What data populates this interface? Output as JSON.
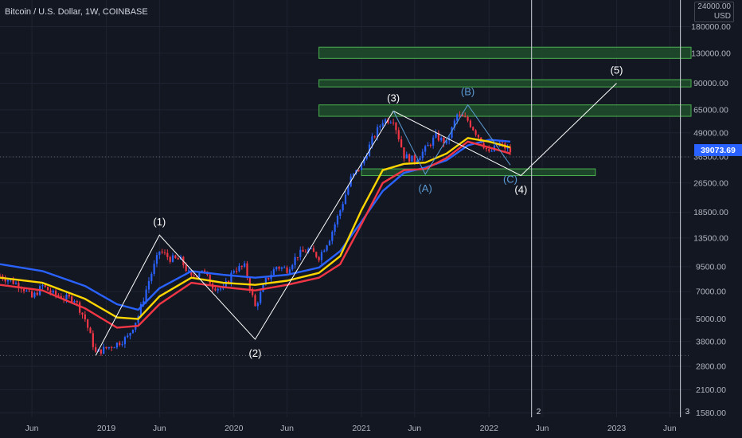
{
  "header": {
    "title": "Bitcoin / U.S. Dollar, 1W, COINBASE"
  },
  "axis": {
    "currency": "USD",
    "top_truncated": "24000.00"
  },
  "last_price": {
    "value": "39073.69",
    "color": "#2962ff"
  },
  "colors": {
    "background": "#131722",
    "up_candle": "#2962ff",
    "down_candle": "#f23645",
    "ema_blue": "#2962ff",
    "ema_yellow": "#ffd600",
    "ema_red": "#f23645",
    "zone_fill": "#1e4d2b",
    "zone_border": "#4caf50",
    "wave_line": "#ffffff",
    "abc_label": "#5b9bd5"
  },
  "chart_data": {
    "type": "candlestick",
    "title": "Bitcoin / U.S. Dollar, 1W, COINBASE",
    "y_scale": "log",
    "ylim": [
      1500,
      240000
    ],
    "xlim": [
      "2018-03",
      "2023-08"
    ],
    "y_ticks": [
      "180000.00",
      "130000.00",
      "90000.00",
      "65000.00",
      "49000.00",
      "36500.00",
      "26500.00",
      "18500.00",
      "13500.00",
      "9500.00",
      "7000.00",
      "5000.00",
      "3800.00",
      "2800.00",
      "2100.00",
      "1580.00"
    ],
    "x_ticks": [
      {
        "label": "Jun",
        "date": "2018-06"
      },
      {
        "label": "2019",
        "date": "2019-01"
      },
      {
        "label": "Jun",
        "date": "2019-06"
      },
      {
        "label": "2020",
        "date": "2020-01"
      },
      {
        "label": "Jun",
        "date": "2020-06"
      },
      {
        "label": "2021",
        "date": "2021-01"
      },
      {
        "label": "Jun",
        "date": "2021-06"
      },
      {
        "label": "2022",
        "date": "2022-01"
      },
      {
        "label": "Jun",
        "date": "2022-06"
      },
      {
        "label": "2023",
        "date": "2023-01"
      },
      {
        "label": "Jun",
        "date": "2023-06"
      }
    ],
    "price_path": [
      [
        "2018-03",
        8500
      ],
      [
        "2018-04",
        8000
      ],
      [
        "2018-05",
        7500
      ],
      [
        "2018-06",
        6500
      ],
      [
        "2018-07",
        7500
      ],
      [
        "2018-08",
        6800
      ],
      [
        "2018-09",
        6500
      ],
      [
        "2018-10",
        6400
      ],
      [
        "2018-11",
        5000
      ],
      [
        "2018-12",
        3300
      ],
      [
        "2019-01",
        3500
      ],
      [
        "2019-02",
        3700
      ],
      [
        "2019-03",
        4000
      ],
      [
        "2019-04",
        5200
      ],
      [
        "2019-05",
        8000
      ],
      [
        "2019-06",
        11500
      ],
      [
        "2019-07",
        10500
      ],
      [
        "2019-08",
        10300
      ],
      [
        "2019-09",
        8300
      ],
      [
        "2019-10",
        9200
      ],
      [
        "2019-11",
        7500
      ],
      [
        "2019-12",
        7200
      ],
      [
        "2020-01",
        9200
      ],
      [
        "2020-02",
        9500
      ],
      [
        "2020-03",
        5800
      ],
      [
        "2020-04",
        8000
      ],
      [
        "2020-05",
        9500
      ],
      [
        "2020-06",
        9200
      ],
      [
        "2020-07",
        11000
      ],
      [
        "2020-08",
        11700
      ],
      [
        "2020-09",
        10700
      ],
      [
        "2020-10",
        13500
      ],
      [
        "2020-11",
        19000
      ],
      [
        "2020-12",
        28000
      ],
      [
        "2021-01",
        33000
      ],
      [
        "2021-02",
        45000
      ],
      [
        "2021-03",
        57000
      ],
      [
        "2021-04",
        58000
      ],
      [
        "2021-05",
        37000
      ],
      [
        "2021-06",
        35000
      ],
      [
        "2021-07",
        40000
      ],
      [
        "2021-08",
        47000
      ],
      [
        "2021-09",
        43000
      ],
      [
        "2021-10",
        61000
      ],
      [
        "2021-11",
        57000
      ],
      [
        "2021-12",
        47000
      ],
      [
        "2022-01",
        38000
      ],
      [
        "2022-02",
        43000
      ],
      [
        "2022-03",
        39000
      ]
    ],
    "ema_series": [
      {
        "color": "#2962ff",
        "values": [
          [
            "2018-03",
            9800
          ],
          [
            "2018-07",
            9000
          ],
          [
            "2018-11",
            7500
          ],
          [
            "2019-02",
            6000
          ],
          [
            "2019-04",
            5600
          ],
          [
            "2019-06",
            7300
          ],
          [
            "2019-09",
            9000
          ],
          [
            "2019-12",
            8600
          ],
          [
            "2020-03",
            8300
          ],
          [
            "2020-06",
            8600
          ],
          [
            "2020-09",
            9400
          ],
          [
            "2020-11",
            11500
          ],
          [
            "2021-01",
            16500
          ],
          [
            "2021-03",
            24000
          ],
          [
            "2021-05",
            30000
          ],
          [
            "2021-07",
            32000
          ],
          [
            "2021-09",
            35000
          ],
          [
            "2021-11",
            42000
          ],
          [
            "2022-01",
            45000
          ],
          [
            "2022-03",
            44000
          ]
        ]
      },
      {
        "color": "#ffd600",
        "values": [
          [
            "2018-03",
            8300
          ],
          [
            "2018-07",
            7800
          ],
          [
            "2018-11",
            6400
          ],
          [
            "2019-02",
            5100
          ],
          [
            "2019-04",
            5000
          ],
          [
            "2019-06",
            6600
          ],
          [
            "2019-09",
            8300
          ],
          [
            "2019-12",
            7800
          ],
          [
            "2020-03",
            7600
          ],
          [
            "2020-06",
            8000
          ],
          [
            "2020-09",
            8800
          ],
          [
            "2020-11",
            10800
          ],
          [
            "2021-01",
            19000
          ],
          [
            "2021-03",
            31000
          ],
          [
            "2021-05",
            33500
          ],
          [
            "2021-07",
            34000
          ],
          [
            "2021-09",
            38000
          ],
          [
            "2021-11",
            46000
          ],
          [
            "2022-01",
            44000
          ],
          [
            "2022-03",
            41000
          ]
        ]
      },
      {
        "color": "#f23645",
        "values": [
          [
            "2018-03",
            7600
          ],
          [
            "2018-07",
            7100
          ],
          [
            "2018-11",
            5700
          ],
          [
            "2019-02",
            4500
          ],
          [
            "2019-04",
            4600
          ],
          [
            "2019-06",
            6000
          ],
          [
            "2019-09",
            7800
          ],
          [
            "2019-12",
            7400
          ],
          [
            "2020-03",
            7100
          ],
          [
            "2020-06",
            7600
          ],
          [
            "2020-09",
            8300
          ],
          [
            "2020-11",
            9800
          ],
          [
            "2021-01",
            16000
          ],
          [
            "2021-03",
            26500
          ],
          [
            "2021-05",
            31000
          ],
          [
            "2021-07",
            31500
          ],
          [
            "2021-09",
            36000
          ],
          [
            "2021-11",
            44000
          ],
          [
            "2022-01",
            41000
          ],
          [
            "2022-03",
            38000
          ]
        ]
      }
    ],
    "zones": [
      {
        "x0": "2020-09",
        "x1": "2023-08",
        "low": 122000,
        "high": 140000
      },
      {
        "x0": "2020-09",
        "x1": "2023-08",
        "low": 86000,
        "high": 94000
      },
      {
        "x0": "2020-09",
        "x1": "2023-08",
        "low": 60000,
        "high": 69000
      },
      {
        "x0": "2021-01",
        "x1": "2022-11",
        "low": 29000,
        "high": 31500
      }
    ],
    "wave_path": [
      [
        "2018-12",
        3200
      ],
      [
        "2019-06",
        14000
      ],
      [
        "2020-03",
        3900
      ],
      [
        "2021-04",
        64000
      ],
      [
        "2022-04",
        29000
      ],
      [
        "2023-01",
        90000
      ]
    ],
    "abc_path": [
      [
        "2021-04",
        64000
      ],
      [
        "2021-07",
        29500
      ],
      [
        "2021-11",
        69000
      ],
      [
        "2022-03",
        33000
      ]
    ],
    "wave_labels": [
      {
        "text": "(1)",
        "date": "2019-06",
        "price": 14000,
        "pos": "above",
        "color": "#ffffff"
      },
      {
        "text": "(2)",
        "date": "2020-03",
        "price": 3900,
        "pos": "below",
        "color": "#ffffff"
      },
      {
        "text": "(3)",
        "date": "2021-04",
        "price": 64000,
        "pos": "above",
        "color": "#ffffff"
      },
      {
        "text": "(4)",
        "date": "2022-04",
        "price": 29000,
        "pos": "below",
        "color": "#ffffff"
      },
      {
        "text": "(5)",
        "date": "2023-01",
        "price": 90000,
        "pos": "above",
        "color": "#ffffff"
      },
      {
        "text": "(A)",
        "date": "2021-07",
        "price": 29500,
        "pos": "below",
        "color": "#5b9bd5"
      },
      {
        "text": "(B)",
        "date": "2021-11",
        "price": 69000,
        "pos": "above",
        "color": "#5b9bd5"
      },
      {
        "text": "(C)",
        "date": "2022-03",
        "price": 33000,
        "pos": "below",
        "color": "#5b9bd5"
      }
    ],
    "vertical_markers": [
      {
        "date": "2022-05",
        "label": "2"
      },
      {
        "date": "2023-07",
        "label": "3"
      }
    ],
    "horizontal_dotted": [
      36500,
      3200
    ]
  }
}
